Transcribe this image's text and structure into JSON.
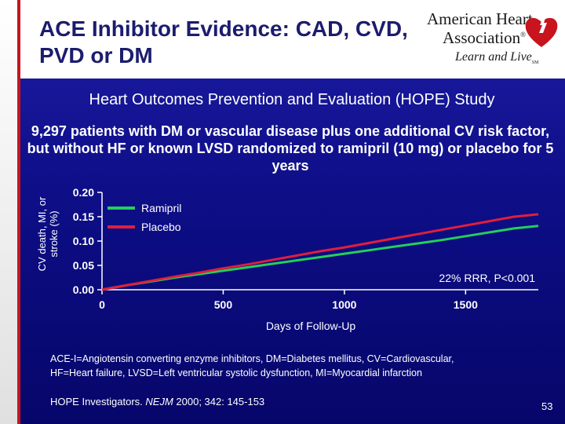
{
  "slide": {
    "title_line1": "ACE Inhibitor Evidence: CAD, CVD,",
    "title_line2": "PVD or DM",
    "subtitle": "Heart Outcomes Prevention and Evaluation (HOPE) Study",
    "description": "9,297 patients with DM or vascular disease plus one additional CV risk factor, but without HF or known LVSD randomized to ramipril (10 mg) or placebo for 5 years",
    "footnote_line1": "ACE-I=Angiotensin converting enzyme inhibitors, DM=Diabetes mellitus, CV=Cardiovascular,",
    "footnote_line2": "HF=Heart failure, LVSD=Left ventricular systolic dysfunction, MI=Myocardial infarction",
    "citation_prefix": "HOPE Investigators. ",
    "citation_journal": "NEJM",
    "citation_suffix": " 2000; 342: 145-153",
    "page_number": "53"
  },
  "logo": {
    "line1": "American Heart",
    "line2": "Association",
    "trademark1": "®",
    "tagline": "Learn and Live",
    "trademark2": "SM"
  },
  "colors": {
    "background": "#0e0e88",
    "ramipril": "#22d05a",
    "placebo": "#e01e3c",
    "title": "#1c1c6e"
  },
  "chart_data": {
    "type": "line",
    "title": "",
    "xlabel": "Days of Follow-Up",
    "ylabel": "CV death, MI, or stroke (%)",
    "xlim": [
      0,
      1800
    ],
    "ylim": [
      0,
      0.2
    ],
    "x_ticks": [
      0,
      500,
      1000,
      1500
    ],
    "x_tick_labels": [
      "0",
      "500",
      "1000",
      "1500"
    ],
    "y_ticks": [
      0,
      0.05,
      0.1,
      0.15,
      0.2
    ],
    "y_tick_labels": [
      "0.00",
      "0.05",
      "0.10",
      "0.15",
      "0.20"
    ],
    "legend": [
      "Ramipril",
      "Placebo"
    ],
    "legend_position": "top-left",
    "annotation": "22% RRR, P<0.001",
    "series": [
      {
        "name": "Ramipril",
        "color": "#22d05a",
        "x": [
          0,
          100,
          200,
          300,
          400,
          500,
          600,
          700,
          800,
          900,
          1000,
          1100,
          1200,
          1300,
          1400,
          1500,
          1600,
          1700,
          1800
        ],
        "y": [
          0,
          0.009,
          0.017,
          0.025,
          0.032,
          0.039,
          0.046,
          0.053,
          0.06,
          0.067,
          0.074,
          0.081,
          0.088,
          0.095,
          0.102,
          0.11,
          0.118,
          0.126,
          0.131
        ]
      },
      {
        "name": "Placebo",
        "color": "#e01e3c",
        "x": [
          0,
          100,
          200,
          300,
          400,
          500,
          600,
          700,
          800,
          900,
          1000,
          1100,
          1200,
          1300,
          1400,
          1500,
          1600,
          1700,
          1800
        ],
        "y": [
          0,
          0.009,
          0.018,
          0.027,
          0.035,
          0.044,
          0.052,
          0.061,
          0.07,
          0.079,
          0.087,
          0.096,
          0.105,
          0.114,
          0.123,
          0.132,
          0.141,
          0.15,
          0.155
        ]
      }
    ]
  }
}
